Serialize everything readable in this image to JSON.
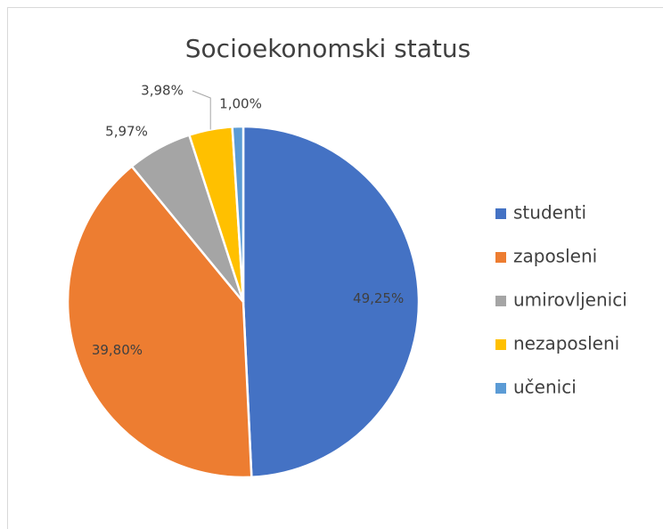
{
  "chart_data": {
    "type": "pie",
    "title": "Socioekonomski status",
    "categories": [
      "studenti",
      "zaposleni",
      "umirovljenici",
      "nezaposleni",
      "učenici"
    ],
    "values": [
      49.25,
      39.8,
      5.97,
      3.98,
      1.0
    ],
    "value_labels": [
      "49,25%",
      "39,80%",
      "5,97%",
      "3,98%",
      "1,00%"
    ],
    "colors": [
      "#4472c4",
      "#ed7d31",
      "#a5a5a5",
      "#ffc000",
      "#5b9bd5"
    ],
    "legend": "right"
  }
}
